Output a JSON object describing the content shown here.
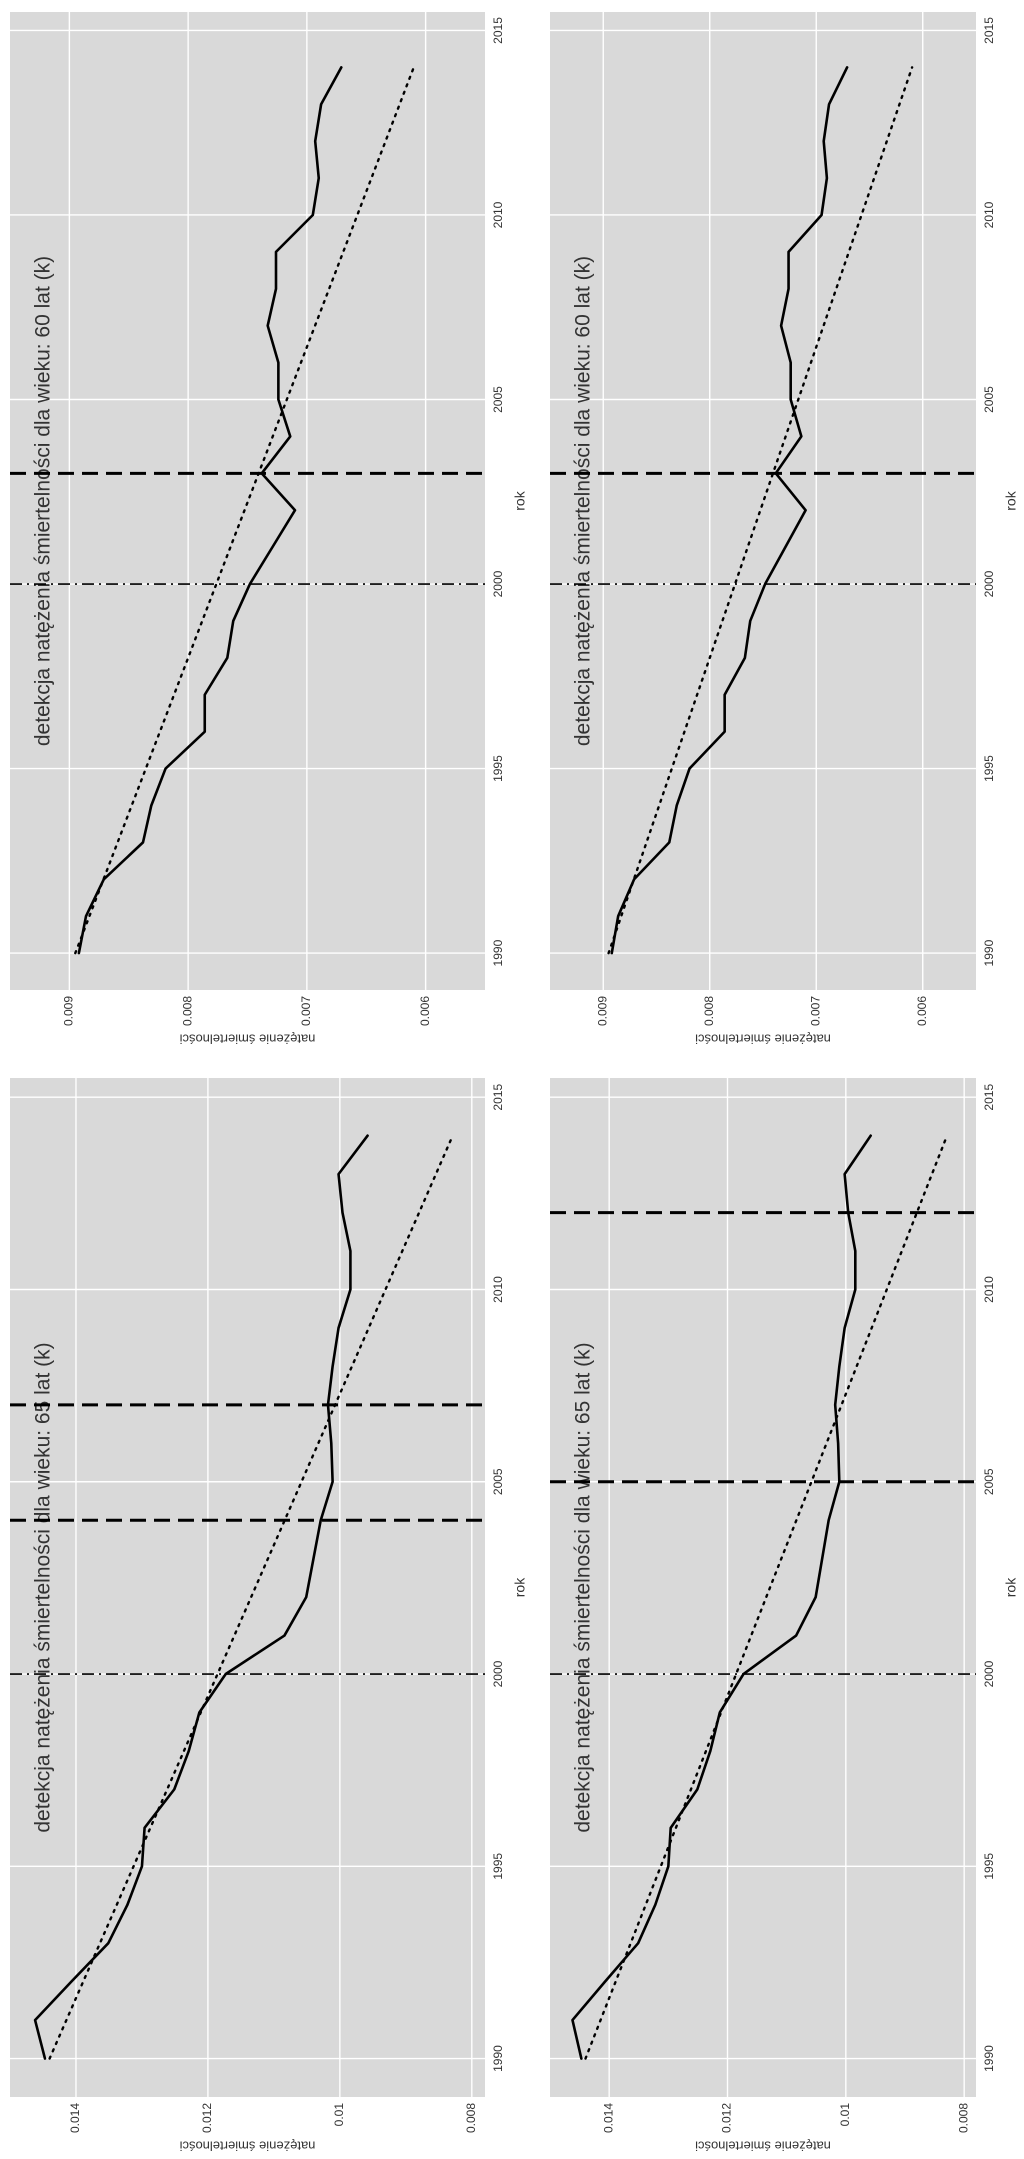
{
  "chart_data": [
    {
      "type": "line",
      "title": "detekcja natężenia śmiertelności dla wieku: 60 lat (k)",
      "xlabel": "rok",
      "ylabel": "natężenie śmiertelności",
      "xlim": [
        1989,
        2015.5
      ],
      "xticks": [
        1990,
        1995,
        2000,
        2005,
        2010,
        2015
      ],
      "ylim": [
        0.0055,
        0.0095
      ],
      "yticks": [
        0.006,
        0.007,
        0.008,
        0.009
      ],
      "grid": true,
      "series": [
        {
          "style": "solid",
          "color": "#000000",
          "x": [
            1990,
            1991,
            1992,
            1993,
            1994,
            1995,
            1996,
            1997,
            1998,
            1999,
            2000,
            2001,
            2002,
            2003,
            2004,
            2005,
            2006,
            2007,
            2008,
            2009,
            2010,
            2011,
            2012,
            2013,
            2014
          ],
          "values": [
            0.00892,
            0.00886,
            0.00871,
            0.00838,
            0.00831,
            0.00819,
            0.00786,
            0.00786,
            0.00767,
            0.00762,
            0.00748,
            0.00729,
            0.0071,
            0.00738,
            0.00714,
            0.00724,
            0.00724,
            0.00733,
            0.00726,
            0.00726,
            0.00695,
            0.0069,
            0.00693,
            0.00688,
            0.00671
          ]
        },
        {
          "style": "dotted",
          "color": "#000000",
          "x": [
            1990,
            2014
          ],
          "values": [
            0.00895,
            0.0061
          ]
        }
      ],
      "vlines": [
        {
          "x": 2000,
          "style": "dashdot"
        },
        {
          "x": 2003,
          "style": "dashed"
        }
      ]
    },
    {
      "type": "line",
      "title": "detekcja natężenia śmiertelności dla wieku: 60 lat (k)",
      "xlabel": "rok",
      "ylabel": "natężenie śmiertelności",
      "xlim": [
        1989,
        2015.5
      ],
      "xticks": [
        1990,
        1995,
        2000,
        2005,
        2010,
        2015
      ],
      "ylim": [
        0.0055,
        0.0095
      ],
      "yticks": [
        0.006,
        0.007,
        0.008,
        0.009
      ],
      "grid": true,
      "series": [
        {
          "style": "solid",
          "color": "#000000",
          "x": [
            1990,
            1991,
            1992,
            1993,
            1994,
            1995,
            1996,
            1997,
            1998,
            1999,
            2000,
            2001,
            2002,
            2003,
            2004,
            2005,
            2006,
            2007,
            2008,
            2009,
            2010,
            2011,
            2012,
            2013,
            2014
          ],
          "values": [
            0.00892,
            0.00886,
            0.00871,
            0.00838,
            0.00831,
            0.00819,
            0.00786,
            0.00786,
            0.00767,
            0.00762,
            0.00748,
            0.00729,
            0.0071,
            0.00738,
            0.00714,
            0.00724,
            0.00724,
            0.00733,
            0.00726,
            0.00726,
            0.00695,
            0.0069,
            0.00693,
            0.00688,
            0.00671
          ]
        },
        {
          "style": "dotted",
          "color": "#000000",
          "x": [
            1990,
            2014
          ],
          "values": [
            0.00895,
            0.0061
          ]
        }
      ],
      "vlines": [
        {
          "x": 2000,
          "style": "dashdot"
        },
        {
          "x": 2003,
          "style": "dashed"
        }
      ]
    },
    {
      "type": "line",
      "title": "detekcja natężenia śmiertelności dla wieku: 65 lat (k)",
      "xlabel": "rok",
      "ylabel": "natężenie śmiertelności",
      "xlim": [
        1989,
        2015.5
      ],
      "xticks": [
        1990,
        1995,
        2000,
        2005,
        2010,
        2015
      ],
      "ylim": [
        0.0078,
        0.015
      ],
      "yticks": [
        0.008,
        0.01,
        0.012,
        0.014
      ],
      "grid": true,
      "series": [
        {
          "style": "solid",
          "color": "#000000",
          "x": [
            1990,
            1991,
            1992,
            1993,
            1994,
            1995,
            1996,
            1997,
            1998,
            1999,
            2000,
            2001,
            2002,
            2003,
            2004,
            2005,
            2006,
            2007,
            2008,
            2009,
            2010,
            2011,
            2012,
            2013,
            2014
          ],
          "values": [
            0.01447,
            0.01462,
            0.01407,
            0.01351,
            0.01322,
            0.013,
            0.01296,
            0.01251,
            0.01229,
            0.01213,
            0.01173,
            0.01084,
            0.01051,
            0.0104,
            0.01029,
            0.01011,
            0.01013,
            0.01018,
            0.01011,
            0.01002,
            0.00984,
            0.00984,
            0.00996,
            0.01002,
            0.00958
          ]
        },
        {
          "style": "dotted",
          "color": "#000000",
          "x": [
            1990,
            2014
          ],
          "values": [
            0.0144,
            0.00829
          ]
        }
      ],
      "vlines": [
        {
          "x": 2000,
          "style": "dashdot"
        },
        {
          "x": 2004,
          "style": "dashed"
        },
        {
          "x": 2007,
          "style": "dashed"
        }
      ]
    },
    {
      "type": "line",
      "title": "detekcja natężenia śmiertelności dla wieku: 65 lat (k)",
      "xlabel": "rok",
      "ylabel": "natężenie śmiertelności",
      "xlim": [
        1989,
        2015.5
      ],
      "xticks": [
        1990,
        1995,
        2000,
        2005,
        2010,
        2015
      ],
      "ylim": [
        0.0078,
        0.015
      ],
      "yticks": [
        0.008,
        0.01,
        0.012,
        0.014
      ],
      "grid": true,
      "series": [
        {
          "style": "solid",
          "color": "#000000",
          "x": [
            1990,
            1991,
            1992,
            1993,
            1994,
            1995,
            1996,
            1997,
            1998,
            1999,
            2000,
            2001,
            2002,
            2003,
            2004,
            2005,
            2006,
            2007,
            2008,
            2009,
            2010,
            2011,
            2012,
            2013,
            2014
          ],
          "values": [
            0.01447,
            0.01462,
            0.01407,
            0.01351,
            0.01322,
            0.013,
            0.01296,
            0.01251,
            0.01229,
            0.01213,
            0.01173,
            0.01084,
            0.01051,
            0.0104,
            0.01029,
            0.01011,
            0.01013,
            0.01018,
            0.01011,
            0.01002,
            0.00984,
            0.00984,
            0.00996,
            0.01002,
            0.00958
          ]
        },
        {
          "style": "dotted",
          "color": "#000000",
          "x": [
            1990,
            2014
          ],
          "values": [
            0.0144,
            0.00829
          ]
        }
      ],
      "vlines": [
        {
          "x": 2000,
          "style": "dashdot"
        },
        {
          "x": 2005,
          "style": "dashed"
        },
        {
          "x": 2012,
          "style": "dashed"
        }
      ]
    }
  ]
}
